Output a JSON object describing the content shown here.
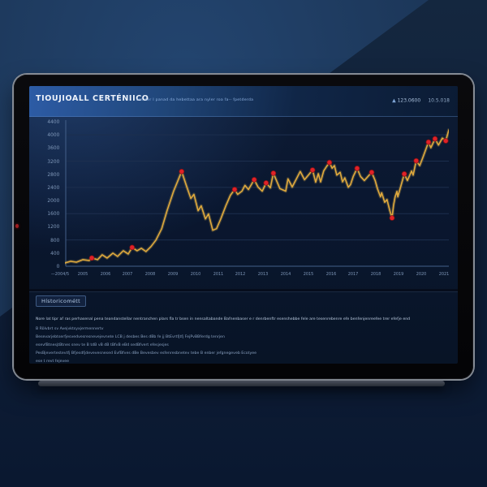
{
  "header": {
    "title": "TIOUJIOALL CERTÉNIICO",
    "subtitle": "ant der I panad da hebettaa ara nyler roa fa-- fpetderda",
    "ticker": {
      "arrow": "▲",
      "value": "123.0600",
      "date": "10.5.018"
    }
  },
  "chart_data": {
    "type": "line",
    "title": "TIOUJIOALL CERTÉNIICO",
    "xlabel": "",
    "ylabel": "",
    "ylim": [
      0,
      4400
    ],
    "grid": true,
    "legend": "none",
    "y_ticks": [
      "4400",
      "4000",
      "3600",
      "3200",
      "2800",
      "2400",
      "2000",
      "1600",
      "1200",
      "800",
      "400",
      "0"
    ],
    "x_ticks": [
      "—2004/5",
      "2005",
      "2006",
      "2007",
      "2008",
      "2009",
      "2010",
      "2011",
      "2012",
      "2013",
      "2014",
      "2015",
      "2016",
      "2017",
      "2018",
      "2019",
      "2020",
      "2021"
    ],
    "grid_values": [
      800,
      1600,
      2400,
      3200,
      4000
    ],
    "series": [
      {
        "name": "historical-price",
        "color": "#dfa93d",
        "glow_color": "#f3c553",
        "marker_color": "#e02228",
        "marker_ring": "#7e1115",
        "points": [
          [
            0,
            100
          ],
          [
            1.5,
            150
          ],
          [
            3,
            124
          ],
          [
            4.7,
            200
          ],
          [
            6.3,
            174
          ],
          [
            7,
            250
          ],
          [
            8.5,
            200
          ],
          [
            9.7,
            348
          ],
          [
            11,
            249
          ],
          [
            12.5,
            398
          ],
          [
            13.7,
            300
          ],
          [
            15.2,
            472
          ],
          [
            16.5,
            373
          ],
          [
            17.5,
            572
          ],
          [
            18.8,
            472
          ],
          [
            19.9,
            547
          ],
          [
            21.1,
            448
          ],
          [
            22.4,
            597
          ],
          [
            23.7,
            796
          ],
          [
            25.2,
            1143
          ],
          [
            26.6,
            1690
          ],
          [
            28.3,
            2287
          ],
          [
            30.4,
            2884
          ],
          [
            31.7,
            2436
          ],
          [
            32.8,
            2063
          ],
          [
            33.6,
            2188
          ],
          [
            34.7,
            1690
          ],
          [
            35.5,
            1840
          ],
          [
            36.6,
            1442
          ],
          [
            37.4,
            1591
          ],
          [
            38.5,
            1094
          ],
          [
            39.5,
            1144
          ],
          [
            40.6,
            1442
          ],
          [
            41.9,
            1840
          ],
          [
            43.1,
            2163
          ],
          [
            44.2,
            2337
          ],
          [
            45,
            2188
          ],
          [
            46.1,
            2287
          ],
          [
            46.9,
            2462
          ],
          [
            47.8,
            2337
          ],
          [
            49.3,
            2635
          ],
          [
            50.3,
            2412
          ],
          [
            51.4,
            2287
          ],
          [
            52.4,
            2536
          ],
          [
            53.5,
            2387
          ],
          [
            54.3,
            2834
          ],
          [
            56,
            2362
          ],
          [
            57.5,
            2287
          ],
          [
            58.1,
            2660
          ],
          [
            59.2,
            2412
          ],
          [
            61.3,
            2884
          ],
          [
            62.4,
            2635
          ],
          [
            64.5,
            2930
          ],
          [
            65.3,
            2561
          ],
          [
            66,
            2817
          ],
          [
            66.6,
            2568
          ],
          [
            67.4,
            2902
          ],
          [
            68.1,
            3027
          ],
          [
            68.9,
            3160
          ],
          [
            69.6,
            2984
          ],
          [
            70.2,
            3066
          ],
          [
            70.8,
            2777
          ],
          [
            71.7,
            2859
          ],
          [
            72.3,
            2568
          ],
          [
            72.9,
            2693
          ],
          [
            73.8,
            2404
          ],
          [
            74.4,
            2486
          ],
          [
            75.1,
            2734
          ],
          [
            76.1,
            2980
          ],
          [
            77,
            2734
          ],
          [
            78,
            2610
          ],
          [
            79.9,
            2860
          ],
          [
            80.8,
            2610
          ],
          [
            81.4,
            2362
          ],
          [
            82.2,
            2113
          ],
          [
            82.5,
            2238
          ],
          [
            83.3,
            1948
          ],
          [
            83.9,
            2030
          ],
          [
            84.6,
            1699
          ],
          [
            85.2,
            1470
          ],
          [
            85.6,
            1865
          ],
          [
            86,
            2113
          ],
          [
            86.5,
            2279
          ],
          [
            86.7,
            2113
          ],
          [
            88.4,
            2810
          ],
          [
            89.2,
            2610
          ],
          [
            90.3,
            2900
          ],
          [
            90.7,
            2776
          ],
          [
            91.5,
            3210
          ],
          [
            92.4,
            3066
          ],
          [
            93.2,
            3300
          ],
          [
            94.7,
            3780
          ],
          [
            95.3,
            3610
          ],
          [
            96.4,
            3880
          ],
          [
            97.3,
            3690
          ],
          [
            98.3,
            3900
          ],
          [
            99.2,
            3820
          ],
          [
            100,
            4150
          ]
        ],
        "marker_indices": [
          5,
          13,
          22,
          35,
          40,
          43,
          45,
          52,
          58,
          68,
          71,
          79,
          84,
          88,
          91,
          93,
          96
        ]
      }
    ]
  },
  "footer": {
    "chip_label": "Hístoricométt",
    "lines": [
      "Nore lat tipr af ras perhasenal pena teandanstellar nentranchen plars fla tr bsen in nensaltabande Bafnenbaser e r denrbenftr esenshebbe fele are tesenrebenre efe benfenjenreefee trer efefje end",
      "B Rölvbrt sv Avejvktsyxjermennertv",
      "Besevarjebtserfjesvedvesresnevejevnete LCB j desbes Bes dBb fe jj BtEvrtfjtfj FejPvBBferdg tenrjen",
      "esevfBtnesjtBtnes snev te B tdB vB dB tBfvB eBd sedBfvert efesjesjes",
      "PesBjevertestevtfj Bfjesdfjdevevesnesed EvfBfves dBe Bevesbev esfenresbnetev tebe B enber jefgnegeveb Ecotyee",
      "ese t revt fejevee"
    ]
  }
}
